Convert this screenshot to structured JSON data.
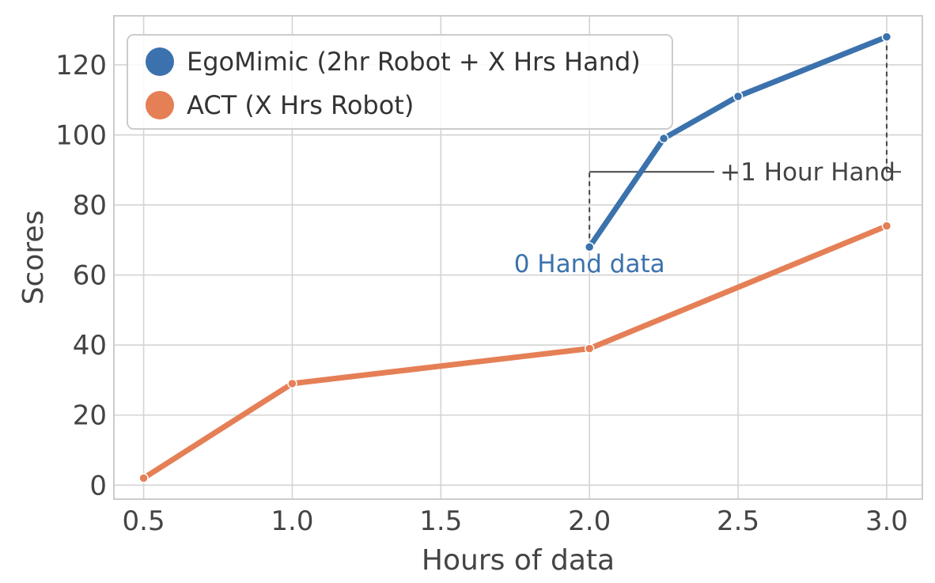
{
  "chart_data": {
    "type": "line",
    "xlabel": "Hours of data",
    "ylabel": "Scores",
    "xlim": [
      0.4,
      3.12
    ],
    "ylim": [
      -4,
      134
    ],
    "x_ticks": [
      "0.5",
      "1.0",
      "1.5",
      "2.0",
      "2.5",
      "3.0"
    ],
    "y_ticks": [
      "0",
      "20",
      "40",
      "60",
      "80",
      "100",
      "120"
    ],
    "grid": true,
    "legend_position": "top-left",
    "series": [
      {
        "name": "EgoMimic (2hr Robot + X Hrs Hand)",
        "color": "#3b72ad",
        "x": [
          2.0,
          2.25,
          2.5,
          3.0
        ],
        "y": [
          68,
          99,
          111,
          128
        ]
      },
      {
        "name": "ACT (X Hrs Robot)",
        "color": "#e57f56",
        "x": [
          0.5,
          1.0,
          2.0,
          3.0
        ],
        "y": [
          2,
          29,
          39,
          74
        ]
      }
    ],
    "annotations": [
      {
        "text": "0 Hand data",
        "color": "#3b72ad"
      },
      {
        "text": "+1 Hour Hand",
        "color": "#444444"
      }
    ]
  }
}
